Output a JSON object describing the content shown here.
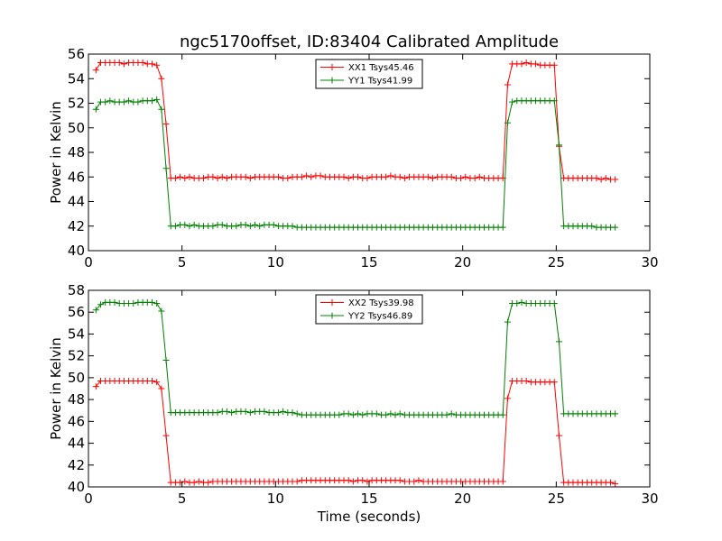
{
  "figure": {
    "title": "ngc5170offset, ID:83404 Calibrated Amplitude",
    "xlabel": "Time (seconds)"
  },
  "chart_data": [
    {
      "type": "line",
      "title": "ngc5170offset, ID:83404 Calibrated Amplitude",
      "xlabel": "",
      "ylabel": "Power in Kelvin",
      "xlim": [
        0,
        30
      ],
      "ylim": [
        40,
        56
      ],
      "xticks": [
        0,
        5,
        10,
        15,
        20,
        25,
        30
      ],
      "yticks": [
        40,
        42,
        44,
        46,
        48,
        50,
        52,
        54,
        56
      ],
      "grid": false,
      "legend": "top-center",
      "x": [
        0.4,
        0.65,
        0.9,
        1.15,
        1.4,
        1.65,
        1.9,
        2.15,
        2.4,
        2.65,
        2.9,
        3.15,
        3.4,
        3.65,
        3.9,
        4.15,
        4.4,
        4.65,
        4.9,
        5.15,
        5.4,
        5.65,
        5.9,
        6.15,
        6.4,
        6.65,
        6.9,
        7.15,
        7.4,
        7.65,
        7.9,
        8.15,
        8.4,
        8.65,
        8.9,
        9.15,
        9.4,
        9.65,
        9.9,
        10.15,
        10.4,
        10.65,
        10.9,
        11.15,
        11.4,
        11.65,
        11.9,
        12.15,
        12.4,
        12.65,
        12.9,
        13.15,
        13.4,
        13.65,
        13.9,
        14.15,
        14.4,
        14.65,
        14.9,
        15.15,
        15.4,
        15.65,
        15.9,
        16.15,
        16.4,
        16.65,
        16.9,
        17.15,
        17.4,
        17.65,
        17.9,
        18.15,
        18.4,
        18.65,
        18.9,
        19.15,
        19.4,
        19.65,
        19.9,
        20.15,
        20.4,
        20.65,
        20.9,
        21.15,
        21.4,
        21.65,
        21.9,
        22.15,
        22.4,
        22.65,
        22.9,
        23.15,
        23.4,
        23.65,
        23.9,
        24.15,
        24.4,
        24.65,
        24.9,
        25.15,
        25.4,
        25.65,
        25.9,
        26.15,
        26.4,
        26.65,
        26.9,
        27.15,
        27.4,
        27.65,
        27.9,
        28.15
      ],
      "series": [
        {
          "name": "XX1 Tsys45.46",
          "color": "#ff0000",
          "values": [
            54.7,
            55.3,
            55.3,
            55.3,
            55.3,
            55.3,
            55.2,
            55.3,
            55.3,
            55.3,
            55.3,
            55.2,
            55.2,
            55.1,
            54.0,
            50.3,
            45.9,
            45.9,
            46.0,
            45.9,
            46.0,
            45.9,
            45.9,
            45.9,
            46.0,
            46.0,
            45.9,
            46.0,
            45.9,
            46.0,
            46.0,
            46.0,
            46.0,
            45.9,
            46.0,
            46.0,
            46.0,
            46.0,
            46.0,
            46.0,
            45.9,
            45.9,
            46.0,
            46.0,
            46.0,
            46.1,
            46.0,
            46.1,
            46.1,
            46.0,
            46.0,
            46.0,
            46.0,
            46.0,
            45.9,
            46.0,
            46.0,
            45.9,
            45.9,
            46.0,
            46.0,
            46.0,
            46.0,
            46.1,
            46.0,
            46.0,
            45.9,
            46.0,
            46.0,
            46.0,
            46.0,
            46.0,
            45.9,
            46.0,
            46.0,
            46.0,
            46.0,
            45.9,
            45.9,
            46.0,
            45.9,
            45.9,
            46.0,
            45.9,
            45.9,
            45.9,
            45.9,
            45.9,
            53.5,
            55.2,
            55.2,
            55.2,
            55.3,
            55.2,
            55.2,
            55.1,
            55.1,
            55.1,
            55.1,
            48.5,
            45.9,
            45.9,
            45.9,
            45.9,
            45.9,
            45.9,
            45.9,
            45.9,
            45.8,
            45.9,
            45.8,
            45.8
          ]
        },
        {
          "name": "YY1 Tsys41.99",
          "color": "#008000",
          "values": [
            51.5,
            52.1,
            52.1,
            52.2,
            52.1,
            52.1,
            52.1,
            52.2,
            52.1,
            52.1,
            52.2,
            52.2,
            52.2,
            52.3,
            51.5,
            46.7,
            42.0,
            42.0,
            42.1,
            42.1,
            42.0,
            42.1,
            42.0,
            42.0,
            42.0,
            42.0,
            42.1,
            42.1,
            42.0,
            42.0,
            42.0,
            42.1,
            42.1,
            42.0,
            42.1,
            42.0,
            42.1,
            42.1,
            42.1,
            42.0,
            42.0,
            42.0,
            42.0,
            41.9,
            41.9,
            41.9,
            41.9,
            41.9,
            41.9,
            41.9,
            41.9,
            41.9,
            41.9,
            41.9,
            41.9,
            41.9,
            41.9,
            41.9,
            41.9,
            41.9,
            41.9,
            41.9,
            41.9,
            41.9,
            41.9,
            41.9,
            41.9,
            41.9,
            41.9,
            41.9,
            41.9,
            41.9,
            41.9,
            41.9,
            41.9,
            41.9,
            41.9,
            41.9,
            41.9,
            41.9,
            41.9,
            41.9,
            41.9,
            41.9,
            41.9,
            41.9,
            41.9,
            41.9,
            50.4,
            52.1,
            52.2,
            52.2,
            52.2,
            52.2,
            52.2,
            52.2,
            52.2,
            52.2,
            52.2,
            48.6,
            42.0,
            42.0,
            42.0,
            42.0,
            42.0,
            42.0,
            42.0,
            41.9,
            41.9,
            41.9,
            41.9,
            41.9
          ]
        }
      ]
    },
    {
      "type": "line",
      "title": "",
      "xlabel": "Time (seconds)",
      "ylabel": "Power in Kelvin",
      "xlim": [
        0,
        30
      ],
      "ylim": [
        40,
        58
      ],
      "xticks": [
        0,
        5,
        10,
        15,
        20,
        25,
        30
      ],
      "yticks": [
        40,
        42,
        44,
        46,
        48,
        50,
        52,
        54,
        56,
        58
      ],
      "grid": false,
      "legend": "top-center",
      "x": [
        0.4,
        0.65,
        0.9,
        1.15,
        1.4,
        1.65,
        1.9,
        2.15,
        2.4,
        2.65,
        2.9,
        3.15,
        3.4,
        3.65,
        3.9,
        4.15,
        4.4,
        4.65,
        4.9,
        5.15,
        5.4,
        5.65,
        5.9,
        6.15,
        6.4,
        6.65,
        6.9,
        7.15,
        7.4,
        7.65,
        7.9,
        8.15,
        8.4,
        8.65,
        8.9,
        9.15,
        9.4,
        9.65,
        9.9,
        10.15,
        10.4,
        10.65,
        10.9,
        11.15,
        11.4,
        11.65,
        11.9,
        12.15,
        12.4,
        12.65,
        12.9,
        13.15,
        13.4,
        13.65,
        13.9,
        14.15,
        14.4,
        14.65,
        14.9,
        15.15,
        15.4,
        15.65,
        15.9,
        16.15,
        16.4,
        16.65,
        16.9,
        17.15,
        17.4,
        17.65,
        17.9,
        18.15,
        18.4,
        18.65,
        18.9,
        19.15,
        19.4,
        19.65,
        19.9,
        20.15,
        20.4,
        20.65,
        20.9,
        21.15,
        21.4,
        21.65,
        21.9,
        22.15,
        22.4,
        22.65,
        22.9,
        23.15,
        23.4,
        23.65,
        23.9,
        24.15,
        24.4,
        24.65,
        24.9,
        25.15,
        25.4,
        25.65,
        25.9,
        26.15,
        26.4,
        26.65,
        26.9,
        27.15,
        27.4,
        27.65,
        27.9,
        28.15
      ],
      "series": [
        {
          "name": "XX2 Tsys39.98",
          "color": "#ff0000",
          "values": [
            49.2,
            49.7,
            49.7,
            49.7,
            49.7,
            49.7,
            49.7,
            49.7,
            49.7,
            49.7,
            49.7,
            49.7,
            49.7,
            49.6,
            49.0,
            44.7,
            40.4,
            40.4,
            40.4,
            40.5,
            40.4,
            40.4,
            40.5,
            40.4,
            40.4,
            40.5,
            40.5,
            40.5,
            40.5,
            40.5,
            40.5,
            40.5,
            40.5,
            40.5,
            40.5,
            40.5,
            40.5,
            40.5,
            40.5,
            40.5,
            40.5,
            40.5,
            40.5,
            40.5,
            40.6,
            40.6,
            40.6,
            40.6,
            40.6,
            40.6,
            40.6,
            40.6,
            40.6,
            40.6,
            40.6,
            40.5,
            40.6,
            40.6,
            40.5,
            40.6,
            40.6,
            40.6,
            40.6,
            40.6,
            40.6,
            40.6,
            40.5,
            40.5,
            40.5,
            40.6,
            40.5,
            40.5,
            40.5,
            40.5,
            40.5,
            40.5,
            40.5,
            40.5,
            40.5,
            40.5,
            40.5,
            40.5,
            40.5,
            40.5,
            40.5,
            40.5,
            40.5,
            40.5,
            48.1,
            49.7,
            49.7,
            49.7,
            49.7,
            49.6,
            49.6,
            49.6,
            49.6,
            49.6,
            49.6,
            44.7,
            40.4,
            40.4,
            40.4,
            40.4,
            40.4,
            40.4,
            40.4,
            40.4,
            40.4,
            40.4,
            40.4,
            40.3
          ]
        },
        {
          "name": "YY2 Tsys46.89",
          "color": "#008000",
          "values": [
            56.2,
            56.7,
            56.9,
            56.9,
            56.9,
            56.8,
            56.8,
            56.8,
            56.8,
            56.9,
            56.9,
            56.9,
            56.9,
            56.8,
            56.1,
            51.6,
            46.8,
            46.8,
            46.8,
            46.8,
            46.8,
            46.8,
            46.8,
            46.8,
            46.8,
            46.8,
            46.8,
            46.9,
            46.9,
            46.8,
            46.9,
            46.9,
            46.9,
            46.8,
            46.9,
            46.9,
            46.9,
            46.8,
            46.8,
            46.8,
            46.9,
            46.8,
            46.8,
            46.7,
            46.6,
            46.6,
            46.6,
            46.6,
            46.6,
            46.6,
            46.6,
            46.6,
            46.6,
            46.7,
            46.7,
            46.6,
            46.7,
            46.6,
            46.7,
            46.7,
            46.7,
            46.6,
            46.6,
            46.7,
            46.6,
            46.7,
            46.6,
            46.6,
            46.6,
            46.6,
            46.6,
            46.6,
            46.6,
            46.6,
            46.6,
            46.6,
            46.7,
            46.6,
            46.6,
            46.6,
            46.6,
            46.6,
            46.6,
            46.6,
            46.6,
            46.6,
            46.6,
            46.6,
            55.1,
            56.8,
            56.8,
            56.9,
            56.8,
            56.8,
            56.8,
            56.8,
            56.8,
            56.8,
            56.8,
            53.3,
            46.7,
            46.7,
            46.7,
            46.7,
            46.7,
            46.7,
            46.7,
            46.7,
            46.7,
            46.7,
            46.7,
            46.7
          ]
        }
      ]
    }
  ]
}
